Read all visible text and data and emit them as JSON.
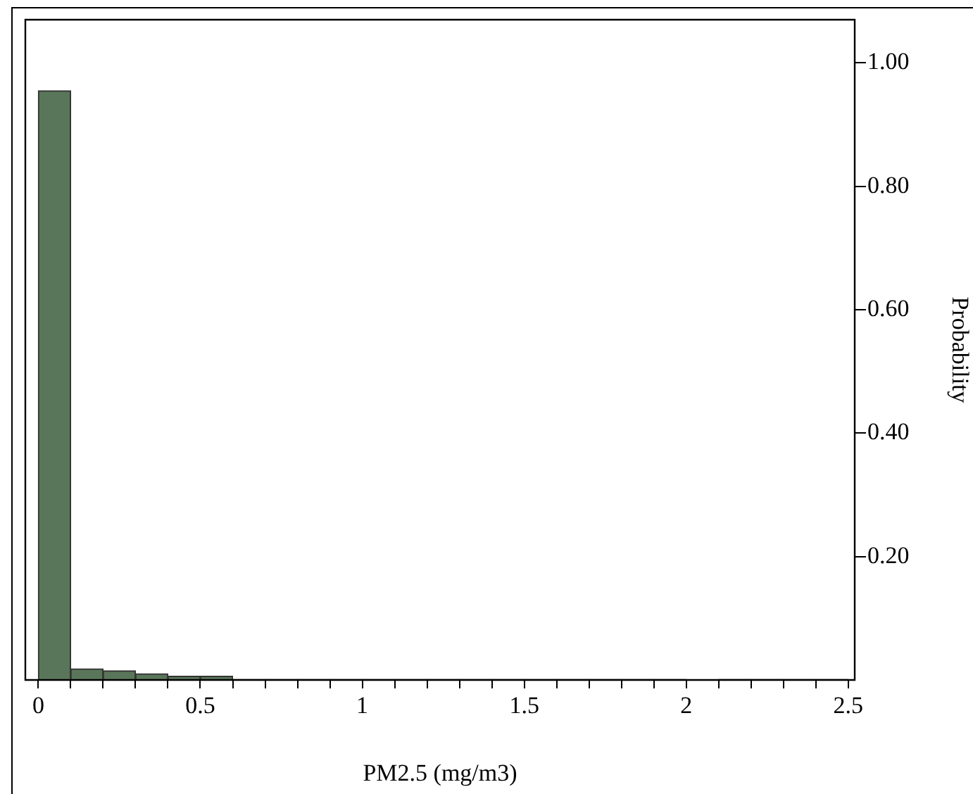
{
  "chart_data": {
    "type": "histogram",
    "xlabel": "PM2.5 (mg/m3)",
    "ylabel": "Probability",
    "bins": [
      0,
      0.1,
      0.2,
      0.3,
      0.4,
      0.5,
      0.6,
      0.7,
      0.8,
      0.9,
      1.0,
      1.1,
      1.2,
      1.3,
      1.4,
      1.5,
      1.6,
      1.7,
      1.8,
      1.9,
      2.0,
      2.1,
      2.2,
      2.3,
      2.4,
      2.5
    ],
    "values": [
      0.955,
      0.018,
      0.015,
      0.01,
      0.006,
      0.006,
      0.001,
      0.001,
      0.001,
      0.001,
      0.001,
      0.001,
      0.001,
      0.001,
      0.001,
      0.001,
      0.001,
      0.001,
      0.001,
      0.001,
      0,
      0.001,
      0.001,
      0.001,
      0.001
    ],
    "color": "#5a765a",
    "xlim": [
      -0.04,
      2.52
    ],
    "xticks": [
      0,
      {
        "value": 0.1,
        "label": null
      },
      {
        "value": 0.2,
        "label": null
      },
      {
        "value": 0.3,
        "label": null
      },
      {
        "value": 0.4,
        "label": null
      },
      0.5,
      {
        "value": 0.6,
        "label": null
      },
      {
        "value": 0.7,
        "label": null
      },
      {
        "value": 0.8,
        "label": null
      },
      {
        "value": 0.9,
        "label": null
      },
      1,
      {
        "value": 1.1,
        "label": null
      },
      {
        "value": 1.2,
        "label": null
      },
      {
        "value": 1.3,
        "label": null
      },
      {
        "value": 1.4,
        "label": null
      },
      1.5,
      {
        "value": 1.6,
        "label": null
      },
      {
        "value": 1.7,
        "label": null
      },
      {
        "value": 1.8,
        "label": null
      },
      {
        "value": 1.9,
        "label": null
      },
      2,
      {
        "value": 2.1,
        "label": null
      },
      {
        "value": 2.2,
        "label": null
      },
      {
        "value": 2.3,
        "label": null
      },
      {
        "value": 2.4,
        "label": null
      },
      2.5
    ],
    "ylim": [
      0,
      1.07
    ],
    "yticks": [
      {
        "value": 0.2,
        "label": "0.20"
      },
      {
        "value": 0.4,
        "label": "0.40"
      },
      {
        "value": 0.6,
        "label": "0.60"
      },
      {
        "value": 0.8,
        "label": "0.80"
      },
      {
        "value": 1.0,
        "label": "1.00"
      }
    ],
    "grid": false,
    "legend": false
  }
}
